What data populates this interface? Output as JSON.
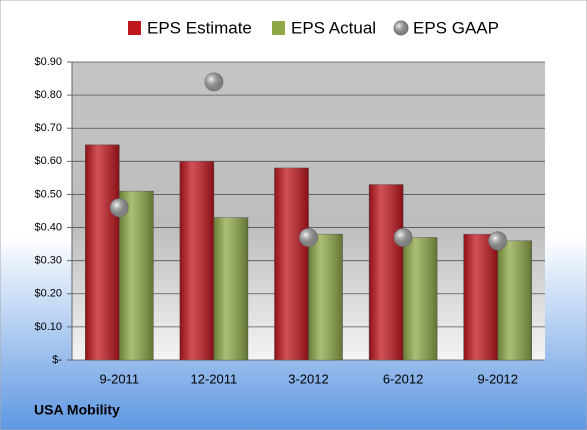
{
  "chart_data": {
    "type": "bar",
    "categories": [
      "9-2011",
      "12-2011",
      "3-2012",
      "6-2012",
      "9-2012"
    ],
    "series": [
      {
        "name": "EPS Estimate",
        "color": "#c0161e",
        "values": [
          0.65,
          0.6,
          0.58,
          0.53,
          0.38
        ]
      },
      {
        "name": "EPS Actual",
        "color": "#8ea848",
        "values": [
          0.51,
          0.43,
          0.38,
          0.37,
          0.36
        ]
      },
      {
        "name": "EPS GAAP",
        "type": "scatter",
        "color": "#a8a8a8",
        "values": [
          0.46,
          0.84,
          0.37,
          0.37,
          0.36
        ]
      }
    ],
    "ylim": [
      0,
      0.9
    ],
    "yticks": [
      {
        "value": 0,
        "label": "$-"
      },
      {
        "value": 0.1,
        "label": "$0.10"
      },
      {
        "value": 0.2,
        "label": "$0.20"
      },
      {
        "value": 0.3,
        "label": "$0.30"
      },
      {
        "value": 0.4,
        "label": "$0.40"
      },
      {
        "value": 0.5,
        "label": "$0.50"
      },
      {
        "value": 0.6,
        "label": "$0.60"
      },
      {
        "value": 0.7,
        "label": "$0.70"
      },
      {
        "value": 0.8,
        "label": "$0.80"
      },
      {
        "value": 0.9,
        "label": "$0.90"
      }
    ],
    "grid": true,
    "legend": "top",
    "footer": "USA Mobility"
  }
}
